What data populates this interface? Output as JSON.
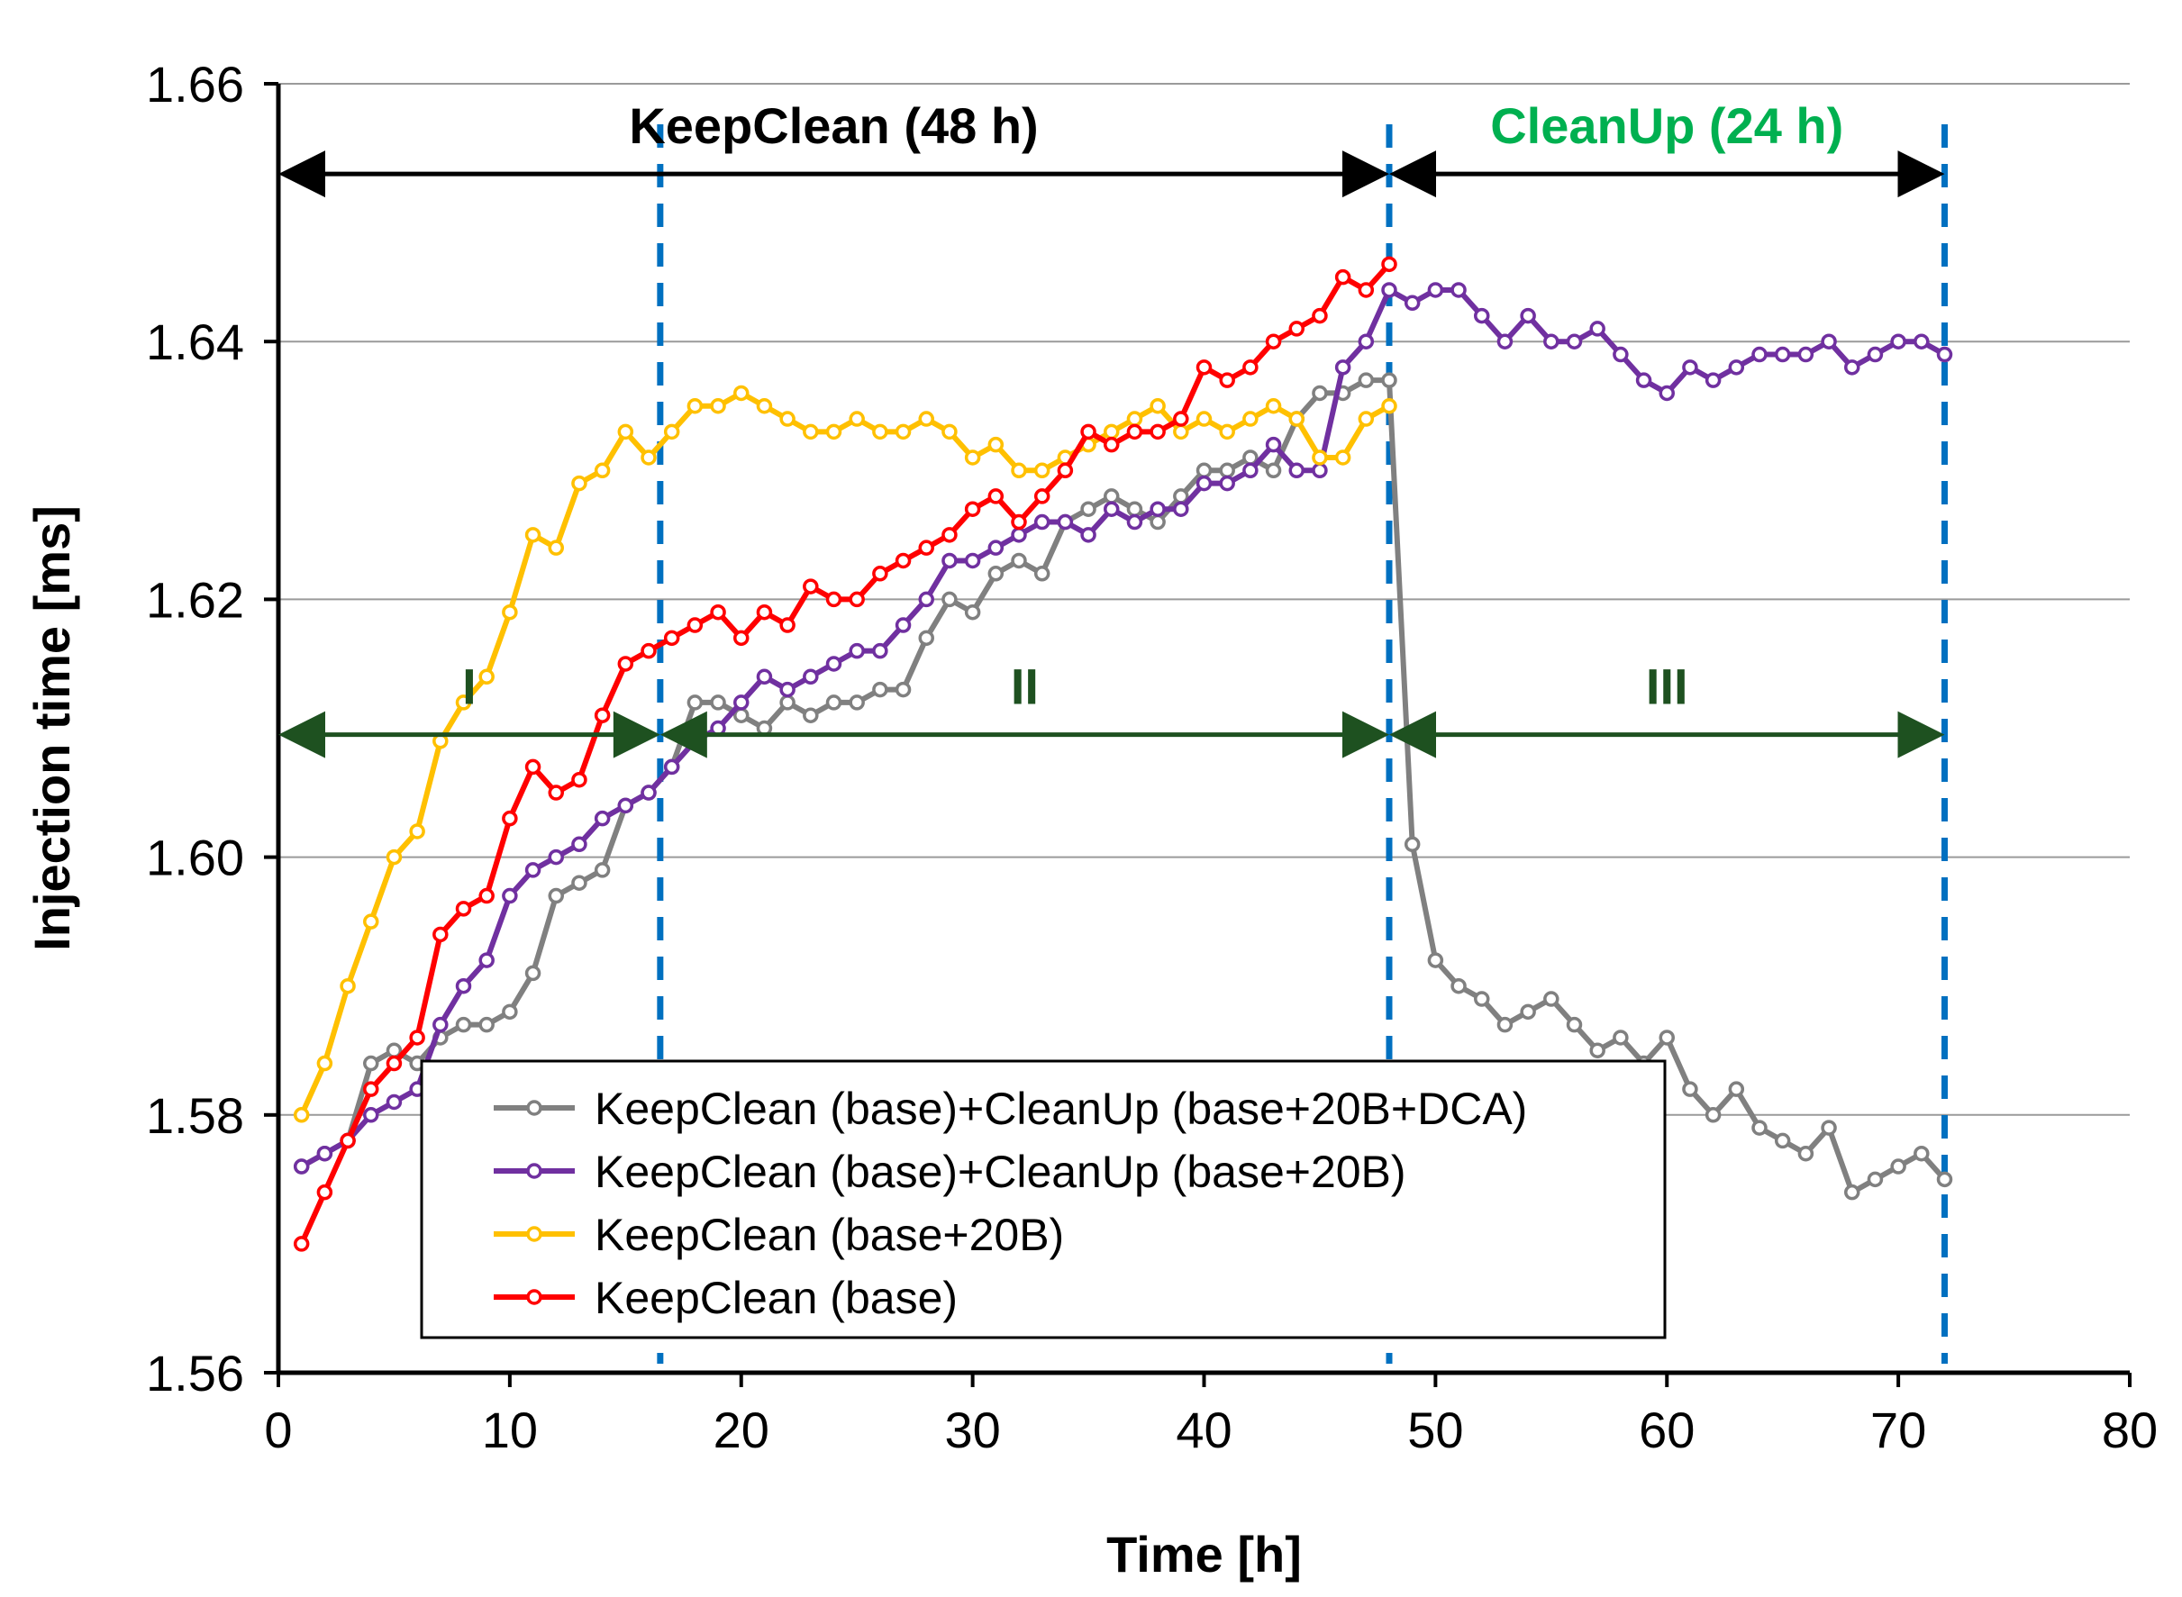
{
  "chart_data": {
    "type": "line",
    "xlabel": "Time [h]",
    "ylabel": "Injection time [ms]",
    "xlim": [
      0,
      80
    ],
    "ylim": [
      1.56,
      1.66
    ],
    "xticks": [
      0,
      10,
      20,
      30,
      40,
      50,
      60,
      70,
      80
    ],
    "yticks": [
      1.56,
      1.58,
      1.6,
      1.62,
      1.64,
      1.66
    ],
    "ytick_labels": [
      "1.56",
      "1.58",
      "1.60",
      "1.62",
      "1.64",
      "1.66"
    ],
    "grid": "horizontal",
    "legend_position": "lower-left",
    "series": [
      {
        "name": "KeepClean (base)+CleanUp (base+20B+DCA)",
        "color": "#808080",
        "x": [
          1,
          2,
          3,
          4,
          5,
          6,
          7,
          8,
          9,
          10,
          11,
          12,
          13,
          14,
          15,
          16,
          17,
          18,
          19,
          20,
          21,
          22,
          23,
          24,
          25,
          26,
          27,
          28,
          29,
          30,
          31,
          32,
          33,
          34,
          35,
          36,
          37,
          38,
          39,
          40,
          41,
          42,
          43,
          44,
          45,
          46,
          47,
          48,
          49,
          50,
          51,
          52,
          53,
          54,
          55,
          56,
          57,
          58,
          59,
          60,
          61,
          62,
          63,
          64,
          65,
          66,
          67,
          68,
          69,
          70,
          71,
          72
        ],
        "y": [
          1.576,
          1.577,
          1.578,
          1.584,
          1.585,
          1.584,
          1.586,
          1.587,
          1.587,
          1.588,
          1.591,
          1.597,
          1.598,
          1.599,
          1.604,
          1.605,
          1.607,
          1.612,
          1.612,
          1.611,
          1.61,
          1.612,
          1.611,
          1.612,
          1.612,
          1.613,
          1.613,
          1.617,
          1.62,
          1.619,
          1.622,
          1.623,
          1.622,
          1.626,
          1.627,
          1.628,
          1.627,
          1.626,
          1.628,
          1.63,
          1.63,
          1.631,
          1.63,
          1.634,
          1.636,
          1.636,
          1.637,
          1.637,
          1.601,
          1.592,
          1.59,
          1.589,
          1.587,
          1.588,
          1.589,
          1.587,
          1.585,
          1.586,
          1.584,
          1.586,
          1.582,
          1.58,
          1.582,
          1.579,
          1.578,
          1.577,
          1.579,
          1.574,
          1.575,
          1.576,
          1.577,
          1.575
        ]
      },
      {
        "name": "KeepClean (base)+CleanUp (base+20B)",
        "color": "#7030A0",
        "x": [
          1,
          2,
          3,
          4,
          5,
          6,
          7,
          8,
          9,
          10,
          11,
          12,
          13,
          14,
          15,
          16,
          17,
          18,
          19,
          20,
          21,
          22,
          23,
          24,
          25,
          26,
          27,
          28,
          29,
          30,
          31,
          32,
          33,
          34,
          35,
          36,
          37,
          38,
          39,
          40,
          41,
          42,
          43,
          44,
          45,
          46,
          47,
          48,
          49,
          50,
          51,
          52,
          53,
          54,
          55,
          56,
          57,
          58,
          59,
          60,
          61,
          62,
          63,
          64,
          65,
          66,
          67,
          68,
          69,
          70,
          71,
          72
        ],
        "y": [
          1.576,
          1.577,
          1.578,
          1.58,
          1.581,
          1.582,
          1.587,
          1.59,
          1.592,
          1.597,
          1.599,
          1.6,
          1.601,
          1.603,
          1.604,
          1.605,
          1.607,
          1.609,
          1.61,
          1.612,
          1.614,
          1.613,
          1.614,
          1.615,
          1.616,
          1.616,
          1.618,
          1.62,
          1.623,
          1.623,
          1.624,
          1.625,
          1.626,
          1.626,
          1.625,
          1.627,
          1.626,
          1.627,
          1.627,
          1.629,
          1.629,
          1.63,
          1.632,
          1.63,
          1.63,
          1.638,
          1.64,
          1.644,
          1.643,
          1.644,
          1.644,
          1.642,
          1.64,
          1.642,
          1.64,
          1.64,
          1.641,
          1.639,
          1.637,
          1.636,
          1.638,
          1.637,
          1.638,
          1.639,
          1.639,
          1.639,
          1.64,
          1.638,
          1.639,
          1.64,
          1.64,
          1.639
        ]
      },
      {
        "name": "KeepClean (base+20B)",
        "color": "#FFC000",
        "x": [
          1,
          2,
          3,
          4,
          5,
          6,
          7,
          8,
          9,
          10,
          11,
          12,
          13,
          14,
          15,
          16,
          17,
          18,
          19,
          20,
          21,
          22,
          23,
          24,
          25,
          26,
          27,
          28,
          29,
          30,
          31,
          32,
          33,
          34,
          35,
          36,
          37,
          38,
          39,
          40,
          41,
          42,
          43,
          44,
          45,
          46,
          47,
          48
        ],
        "y": [
          1.58,
          1.584,
          1.59,
          1.595,
          1.6,
          1.602,
          1.609,
          1.612,
          1.614,
          1.619,
          1.625,
          1.624,
          1.629,
          1.63,
          1.633,
          1.631,
          1.633,
          1.635,
          1.635,
          1.636,
          1.635,
          1.634,
          1.633,
          1.633,
          1.634,
          1.633,
          1.633,
          1.634,
          1.633,
          1.631,
          1.632,
          1.63,
          1.63,
          1.631,
          1.632,
          1.633,
          1.634,
          1.635,
          1.633,
          1.634,
          1.633,
          1.634,
          1.635,
          1.634,
          1.631,
          1.631,
          1.634,
          1.635
        ]
      },
      {
        "name": "KeepClean (base)",
        "color": "#FF0000",
        "x": [
          1,
          2,
          3,
          4,
          5,
          6,
          7,
          8,
          9,
          10,
          11,
          12,
          13,
          14,
          15,
          16,
          17,
          18,
          19,
          20,
          21,
          22,
          23,
          24,
          25,
          26,
          27,
          28,
          29,
          30,
          31,
          32,
          33,
          34,
          35,
          36,
          37,
          38,
          39,
          40,
          41,
          42,
          43,
          44,
          45,
          46,
          47,
          48
        ],
        "y": [
          1.57,
          1.574,
          1.578,
          1.582,
          1.584,
          1.586,
          1.594,
          1.596,
          1.597,
          1.603,
          1.607,
          1.605,
          1.606,
          1.611,
          1.615,
          1.616,
          1.617,
          1.618,
          1.619,
          1.617,
          1.619,
          1.618,
          1.621,
          1.62,
          1.62,
          1.622,
          1.623,
          1.624,
          1.625,
          1.627,
          1.628,
          1.626,
          1.628,
          1.63,
          1.633,
          1.632,
          1.633,
          1.633,
          1.634,
          1.638,
          1.637,
          1.638,
          1.64,
          1.641,
          1.642,
          1.645,
          1.644,
          1.646
        ]
      }
    ],
    "vertical_lines": [
      {
        "x": 16.5,
        "color": "#0070C0"
      },
      {
        "x": 48,
        "color": "#0070C0"
      },
      {
        "x": 72,
        "color": "#0070C0"
      }
    ],
    "annotations": [
      {
        "text": "KeepClean  (48 h)",
        "color": "#000000",
        "x_from": 0,
        "x_to": 48,
        "y": 1.653
      },
      {
        "text": "CleanUp (24 h)",
        "color": "#00B050",
        "x_from": 48,
        "x_to": 72,
        "y": 1.653
      },
      {
        "text": "I",
        "color": "#1E5120",
        "x_from": 0,
        "x_to": 16.5,
        "y": 1.6095
      },
      {
        "text": "II",
        "color": "#1E5120",
        "x_from": 16.5,
        "x_to": 48,
        "y": 1.6095
      },
      {
        "text": "III",
        "color": "#1E5120",
        "x_from": 48,
        "x_to": 72,
        "y": 1.6095
      }
    ]
  }
}
